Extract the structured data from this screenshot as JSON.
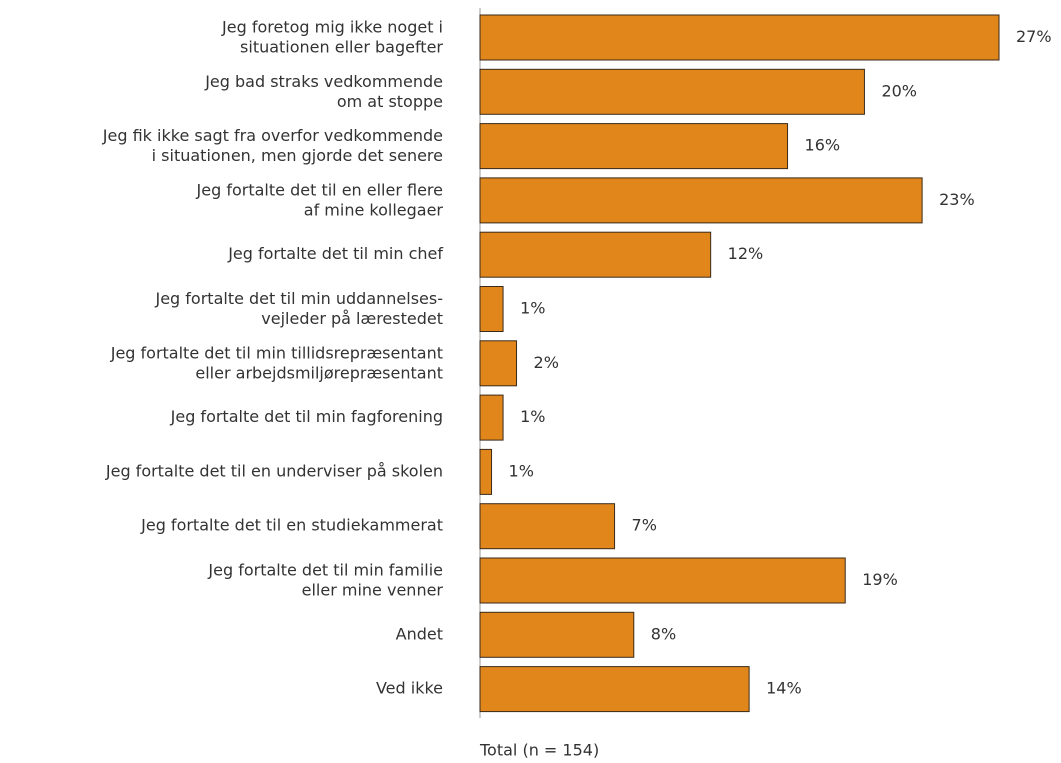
{
  "chart_data": {
    "type": "hbar",
    "categories": [
      "Jeg foretog mig ikke noget i\nsituationen eller bagefter",
      "Jeg bad straks vedkommende\nom at stoppe",
      "Jeg fik ikke sagt fra overfor vedkommende\ni situationen, men gjorde det senere",
      "Jeg fortalte det til en eller flere\naf mine kollegaer",
      "Jeg fortalte det til min chef",
      "Jeg fortalte det til min uddannelses-\nvejleder på lærestedet",
      "Jeg fortalte det til min tillidsrepræsentant\neller arbejdsmiljørepræsentant",
      "Jeg fortalte det til min fagforening",
      "Jeg fortalte det til en underviser på skolen",
      "Jeg fortalte det til en studiekammerat",
      "Jeg fortalte det til min familie\neller mine venner",
      "Andet",
      "Ved ikke"
    ],
    "values": [
      27,
      20,
      16,
      23,
      12,
      1.2,
      1.9,
      1.2,
      0.6,
      7,
      19,
      8,
      14
    ],
    "value_labels": [
      "27%",
      "20%",
      "16%",
      "23%",
      "12%",
      "1%",
      "2%",
      "1%",
      "1%",
      "7%",
      "19%",
      "8%",
      "14%"
    ],
    "color": "#e0861a",
    "xlim": [
      0,
      27
    ],
    "xlabel": "Total (n = 154)"
  }
}
